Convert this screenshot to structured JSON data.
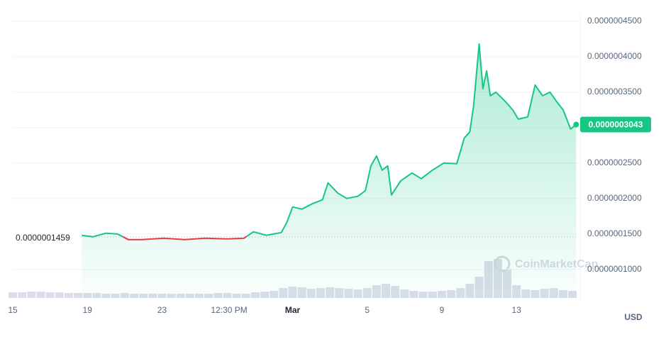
{
  "chart_data": {
    "type": "line",
    "x": [
      3.7,
      4.3,
      5.0,
      5.6,
      6.2,
      6.9,
      8.1,
      9.2,
      10.3,
      11.5,
      12.4,
      12.9,
      13.6,
      14.4,
      14.7,
      15.0,
      15.5,
      16.1,
      16.6,
      16.9,
      17.4,
      17.9,
      18.5,
      18.9,
      19.2,
      19.5,
      19.8,
      20.1,
      20.3,
      20.8,
      21.4,
      21.9,
      22.5,
      23.1,
      23.8,
      24.2,
      24.5,
      24.7,
      25.0,
      25.2,
      25.4,
      25.6,
      25.9,
      26.4,
      26.8,
      27.1,
      27.6,
      28.0,
      28.4,
      28.8,
      29.2,
      29.5,
      29.9,
      30.2
    ],
    "series": [
      {
        "color": "#16c784",
        "down_color": "#ea3943",
        "values": [
          1.48e-07,
          1.46e-07,
          1.51e-07,
          1.5e-07,
          1.42e-07,
          1.42e-07,
          1.44e-07,
          1.42e-07,
          1.44e-07,
          1.43e-07,
          1.44e-07,
          1.53e-07,
          1.48e-07,
          1.52e-07,
          1.67e-07,
          1.88e-07,
          1.85e-07,
          1.93e-07,
          1.98e-07,
          2.22e-07,
          2.08e-07,
          2e-07,
          2.03e-07,
          2.11e-07,
          2.46e-07,
          2.6e-07,
          2.4e-07,
          2.46e-07,
          2.05e-07,
          2.25e-07,
          2.36e-07,
          2.28e-07,
          2.4e-07,
          2.5e-07,
          2.49e-07,
          2.85e-07,
          2.94e-07,
          3.3e-07,
          4.18e-07,
          3.55e-07,
          3.8e-07,
          3.45e-07,
          3.5e-07,
          3.37e-07,
          3.25e-07,
          3.12e-07,
          3.15e-07,
          3.6e-07,
          3.45e-07,
          3.5e-07,
          3.35e-07,
          3.25e-07,
          2.98e-07,
          3.043e-07
        ]
      }
    ],
    "baseline": {
      "value": 1.459e-07,
      "label": "0.0000001459"
    },
    "price": {
      "value": 3.043e-07,
      "label": "0.0000003043"
    },
    "volume": {
      "color": "#cfd6e4",
      "x": [
        0,
        0.5,
        1,
        1.5,
        2,
        2.5,
        3,
        3.5,
        4,
        4.5,
        5,
        5.5,
        6,
        6.5,
        7,
        7.5,
        8,
        8.5,
        9,
        9.5,
        10,
        10.5,
        11,
        11.5,
        12,
        12.5,
        13,
        13.5,
        14,
        14.5,
        15,
        15.5,
        16,
        16.5,
        17,
        17.5,
        18,
        18.5,
        19,
        19.5,
        20,
        20.5,
        21,
        21.5,
        22,
        22.5,
        23,
        23.5,
        24,
        24.5,
        25,
        25.5,
        26,
        26.5,
        27,
        27.5,
        28,
        28.5,
        29,
        29.5,
        30
      ],
      "values": [
        8,
        8,
        9,
        9,
        8,
        8,
        7,
        7,
        7,
        7,
        6,
        6,
        7,
        6,
        6,
        6,
        6,
        6,
        6,
        6,
        6,
        6,
        7,
        7,
        6,
        6,
        8,
        9,
        10,
        14,
        16,
        15,
        13,
        14,
        15,
        14,
        13,
        12,
        14,
        18,
        20,
        17,
        12,
        10,
        9,
        9,
        10,
        11,
        14,
        20,
        30,
        52,
        55,
        40,
        18,
        12,
        11,
        13,
        14,
        11,
        10
      ],
      "y2lim": [
        0,
        70
      ]
    },
    "xlim": [
      0,
      30.3
    ],
    "xticks": [
      {
        "value": 0,
        "label": "15"
      },
      {
        "value": 4,
        "label": "19"
      },
      {
        "value": 8,
        "label": "23"
      },
      {
        "value": 11.6,
        "label": "12:30 PM"
      },
      {
        "value": 15,
        "label": "Mar"
      },
      {
        "value": 19,
        "label": "5"
      },
      {
        "value": 23,
        "label": "9"
      },
      {
        "value": 27,
        "label": "13"
      }
    ],
    "ylim": [
      6e-08,
      4.6e-07
    ],
    "yticks": [
      {
        "value": 4.5e-07,
        "label": "0.0000004500"
      },
      {
        "value": 4e-07,
        "label": "0.0000004000"
      },
      {
        "value": 3.5e-07,
        "label": "0.0000003500"
      },
      {
        "value": 3e-07,
        "label": "0.0000003000"
      },
      {
        "value": 2.5e-07,
        "label": "0.0000002500"
      },
      {
        "value": 2e-07,
        "label": "0.0000002000"
      },
      {
        "value": 1.5e-07,
        "label": "0.0000001500"
      },
      {
        "value": 1e-07,
        "label": "0.0000001000"
      }
    ],
    "grid": true,
    "currency": "USD",
    "watermark": "CoinMarketCap"
  }
}
